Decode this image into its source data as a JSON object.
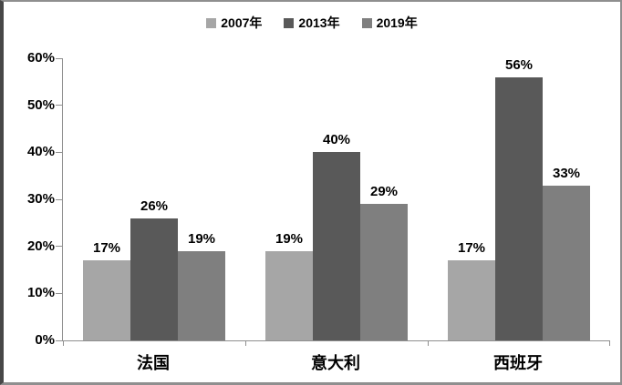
{
  "chart_data": {
    "type": "bar",
    "title": "",
    "categories": [
      "法国",
      "意大利",
      "西班牙"
    ],
    "series": [
      {
        "name": "2007年",
        "color": "#a6a6a6",
        "values": [
          17,
          19,
          17
        ],
        "labels": [
          "17%",
          "19%",
          "17%"
        ]
      },
      {
        "name": "2013年",
        "color": "#595959",
        "values": [
          26,
          40,
          56
        ],
        "labels": [
          "26%",
          "40%",
          "56%"
        ]
      },
      {
        "name": "2019年",
        "color": "#7f7f7f",
        "values": [
          19,
          29,
          33
        ],
        "labels": [
          "19%",
          "29%",
          "33%"
        ]
      }
    ],
    "xlabel": "",
    "ylabel": "",
    "ylim": [
      0,
      60
    ],
    "ytick_step": 10,
    "ytick_suffix": "%",
    "yticks": [
      "0%",
      "10%",
      "20%",
      "30%",
      "40%",
      "50%",
      "60%"
    ],
    "legend_position": "top-center",
    "grid": false,
    "axis_color": "#8f8f8f",
    "text_color": "#000000",
    "frame_border_color": "#8f8f8f",
    "frame_left_border_color": "#474747"
  }
}
